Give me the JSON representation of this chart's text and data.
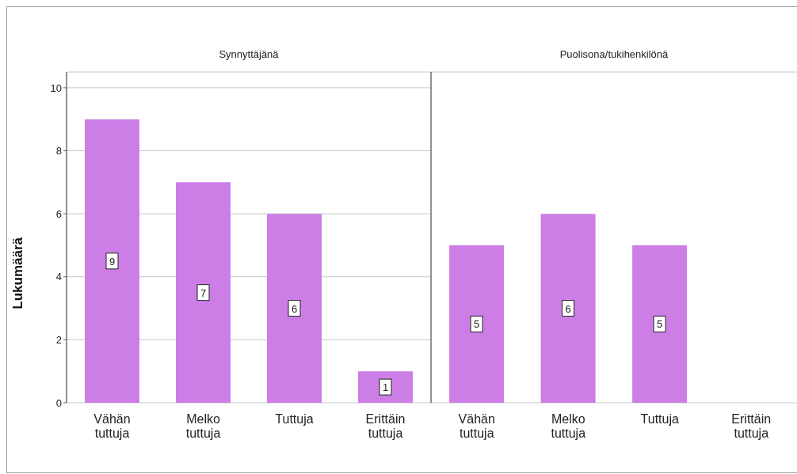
{
  "chart_data": [
    {
      "type": "bar",
      "title": "Synnyttäjänä",
      "ylabel": "Lukumäärä",
      "categories": [
        "Vähän tuttuja",
        "Melko tuttuja",
        "Tuttuja",
        "Erittäin tuttuja"
      ],
      "values": [
        9,
        7,
        6,
        1
      ],
      "color": "#cc7ee6",
      "ylim": [
        0,
        10.5
      ],
      "yticks": [
        0,
        2,
        4,
        6,
        8,
        10
      ],
      "grid": "y",
      "data_labels": true
    },
    {
      "type": "bar",
      "title": "Puolisona/tukihenkilönä",
      "categories": [
        "Vähän tuttuja",
        "Melko tuttuja",
        "Tuttuja",
        "Erittäin tuttuja"
      ],
      "values": [
        5,
        6,
        5,
        null
      ],
      "color": "#cc7ee6",
      "ylim": [
        0,
        10.5
      ],
      "yticks": [
        0,
        2,
        4,
        6,
        8,
        10
      ],
      "grid": "y",
      "data_labels": true,
      "tick_labels": "x"
    }
  ]
}
